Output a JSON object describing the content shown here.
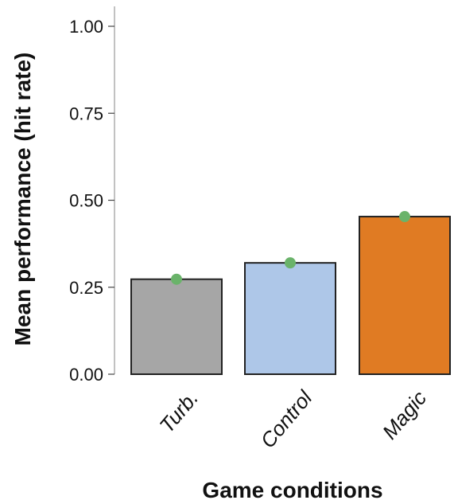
{
  "chart_data": {
    "type": "bar",
    "title": "",
    "xlabel": "Game conditions",
    "ylabel": "Mean performance (hit rate)",
    "categories": [
      "Turb.",
      "Control",
      "Magic"
    ],
    "values": [
      0.273,
      0.32,
      0.453
    ],
    "errors": [
      0.012,
      0.012,
      0.012
    ],
    "ylim": [
      0,
      1.05
    ],
    "yticks": [
      0.0,
      0.25,
      0.5,
      0.75,
      1.0
    ],
    "ytick_labels": [
      "0.00",
      "0.25",
      "0.50",
      "0.75",
      "1.00"
    ],
    "grid": false,
    "legend": "none",
    "bar_colors": [
      "#a6a6a6",
      "#aec7e8",
      "#e07b23"
    ],
    "bar_edge_color": "#222222",
    "error_marker_color": "#6ab36a"
  }
}
